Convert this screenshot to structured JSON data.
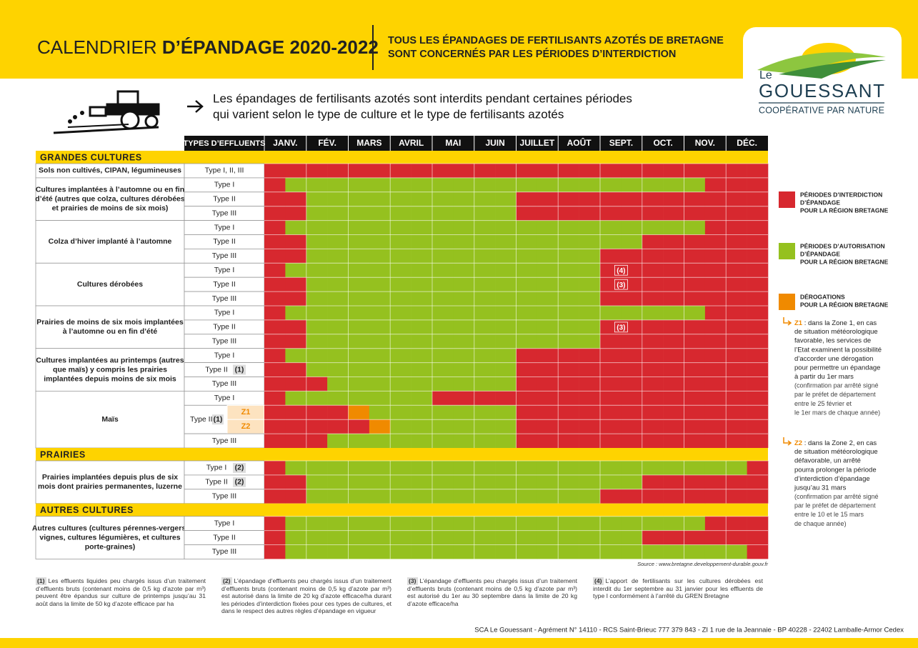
{
  "header": {
    "title_light": "CALENDRIER ",
    "title_bold": "D’ÉPANDAGE 2020-2022",
    "subtitle": [
      "TOUS LES ÉPANDAGES DE FERTILISANTS AZOTÉS DE BRETAGNE",
      "SONT CONCERNÉS PAR LES PÉRIODES D’INTERDICTION"
    ]
  },
  "logo": {
    "le": "Le",
    "name": "GOUESSANT",
    "tagline": "COOPÉRATIVE PAR NATURE"
  },
  "intro": [
    "Les épandages de fertilisants azotés sont interdits pendant certaines périodes",
    "qui varient selon le type de culture et le type de fertilisants azotés"
  ],
  "table": {
    "columns": [
      "TYPES D’EFFLUENTS",
      "JANV.",
      "FÉV.",
      "MARS",
      "AVRIL",
      "MAI",
      "JUIN",
      "JUILLET",
      "AOÛT",
      "SEPT.",
      "OCT.",
      "NOV.",
      "DÉC."
    ],
    "sections": [
      {
        "title": "GRANDES CULTURES",
        "groups": [
          {
            "label": [
              "Sols non cultivés, CIPAN, légumineuses"
            ],
            "rows": [
              {
                "type": "Type I, II, III"
              }
            ]
          },
          {
            "label": [
              "Cultures implantées à l’automne ou en fin",
              "d’été (autres que colza, cultures dérobées",
              "et prairies de moins de six mois)"
            ],
            "rows": [
              {
                "type": "Type I"
              },
              {
                "type": "Type II"
              },
              {
                "type": "Type III"
              }
            ]
          },
          {
            "label": [
              "Colza d’hiver implanté à l’automne"
            ],
            "rows": [
              {
                "type": "Type I"
              },
              {
                "type": "Type II"
              },
              {
                "type": "Type III"
              }
            ]
          },
          {
            "label": [
              "Cultures dérobées"
            ],
            "rows": [
              {
                "type": "Type I",
                "cell_note": "(4)"
              },
              {
                "type": "Type II",
                "cell_note": "(3)"
              },
              {
                "type": "Type III"
              }
            ]
          },
          {
            "label": [
              "Prairies de moins de six mois implantées",
              "à l’automne ou en fin d’été"
            ],
            "rows": [
              {
                "type": "Type I"
              },
              {
                "type": "Type II",
                "cell_note": "(3)"
              },
              {
                "type": "Type III"
              }
            ]
          },
          {
            "label": [
              "Cultures implantées au printemps (autres",
              "que maïs) y compris les prairies",
              "implantées depuis moins de six mois"
            ],
            "rows": [
              {
                "type": "Type I"
              },
              {
                "type": "Type II",
                "note": "(1)"
              },
              {
                "type": "Type III"
              }
            ]
          },
          {
            "label": [
              "Maïs"
            ],
            "rows": [
              {
                "type": "Type I"
              },
              {
                "type": "Type II",
                "note": "(1)",
                "zones": [
                  "Z1",
                  "Z2"
                ]
              },
              {
                "type": "Type III"
              }
            ]
          }
        ]
      },
      {
        "title": "PRAIRIES",
        "groups": [
          {
            "label": [
              "Prairies implantées depuis plus de six",
              "mois dont prairies permanentes, luzerne"
            ],
            "rows": [
              {
                "type": "Type I",
                "note": "(2)"
              },
              {
                "type": "Type II",
                "note": "(2)"
              },
              {
                "type": "Type III"
              }
            ]
          }
        ]
      },
      {
        "title": "AUTRES CULTURES",
        "groups": [
          {
            "label": [
              "Autres cultures (cultures pérennes-vergers,",
              "vignes, cultures légumières, et cultures",
              "porte-graines)"
            ],
            "rows": [
              {
                "type": "Type I"
              },
              {
                "type": "Type II"
              },
              {
                "type": "Type III"
              }
            ]
          }
        ]
      }
    ]
  },
  "legend": [
    {
      "lines": [
        "PÉRIODES D’INTERDICTION",
        "D’ÉPANDAGE",
        "POUR LA RÉGION BRETAGNE"
      ]
    },
    {
      "lines": [
        "PÉRIODES D’AUTORISATION",
        "D’ÉPANDAGE",
        "POUR LA RÉGION BRETAGNE"
      ]
    },
    {
      "lines": [
        "DÉROGATIONS",
        "POUR LA RÉGION BRETAGNE"
      ]
    }
  ],
  "zones": [
    {
      "label": "Z1",
      "lines": [
        " : dans la Zone 1, en cas",
        "de situation météorologique",
        "favorable, les services de",
        "l’Etat examinent la possibilité",
        "d’accorder une dérogation",
        "pour permettre un épandage",
        "à partir du 1er mars"
      ],
      "detail": [
        "(confirmation par arrêté signé",
        "par le préfet de département",
        "entre le 25 février et",
        "le 1er mars de chaque année)"
      ]
    },
    {
      "label": "Z2",
      "lines": [
        " : dans la Zone 2, en cas",
        "de situation météorologique",
        "défavorable, un arrêté",
        "pourra prolonger la période",
        "d’interdiction d’épandage",
        "jusqu’au 31 mars"
      ],
      "detail": [
        "(confirmation par arrêté signé",
        "par le préfet de département",
        "entre le 10 et le 15 mars",
        "de chaque année)"
      ]
    }
  ],
  "source": "Source : www.bretagne.developpement-durable.gouv.fr",
  "footnotes": [
    {
      "marker": "(1)",
      "text": "Les effluents liquides peu chargés issus d’un traitement d’effluents bruts (contenant moins de 0,5 kg d’azote par m³) peuvent être épandus sur culture de printemps jusqu’au 31 août dans la limite de 50 kg d’azote efficace par ha"
    },
    {
      "marker": "(2)",
      "text": "L’épandage d’effluents peu chargés issus d’un traitement d’effluents bruts (contenant moins de 0,5 kg d’azote par m³) est autorisé dans la limite de 20 kg d’azote efficace/ha durant les périodes d’interdiction fixées pour ces types de cultures, et dans le respect des autres règles d’épandage en vigueur"
    },
    {
      "marker": "(3)",
      "text": "L’épandage d’effluents peu chargés issus d’un traitement d’effluents bruts (contenant moins de 0,5 kg d’azote par m³) est autorisé du 1er au 30 septembre dans la limite de 20 kg d’azote efficace/ha"
    },
    {
      "marker": "(4)",
      "text": "L’apport de fertilisants sur les cultures dérobées est interdit du 1er septembre au 31 janvier pour les effluents de type I conformément à l’arrêté du GREN Bretagne"
    }
  ],
  "footer": "SCA Le Gouessant - Agrément N° 14110 - RCS Saint-Brieuc 777 379 843 - ZI 1 rue de la Jeannaie - BP 40228 - 22402 Lamballe-Armor Cedex"
}
